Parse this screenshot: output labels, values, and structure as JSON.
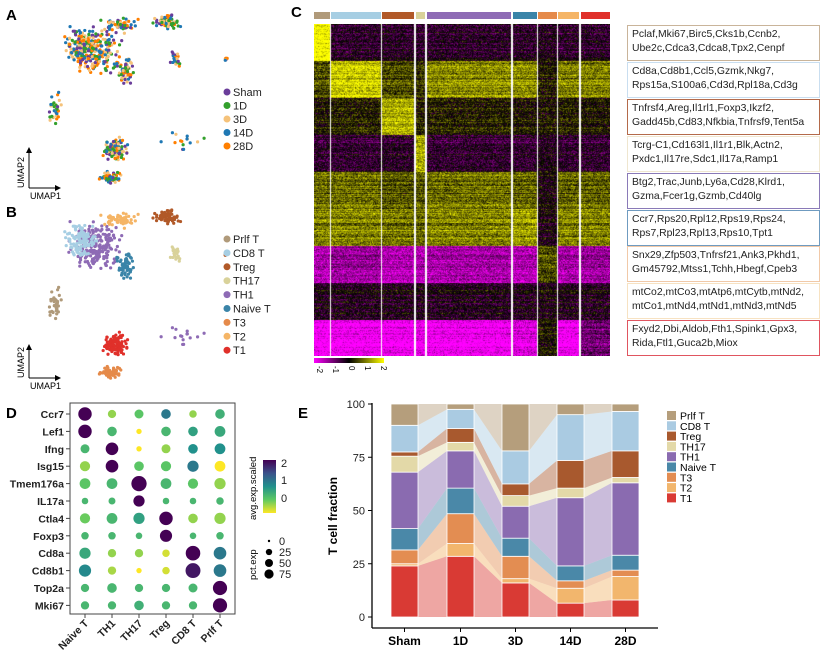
{
  "panel_labels": {
    "A": "A",
    "B": "B",
    "C": "C",
    "D": "D",
    "E": "E"
  },
  "umap": {
    "xlabel": "UMAP1",
    "ylabel": "UMAP2",
    "condition_legend": [
      {
        "label": "Sham",
        "color": "#6a3d9a"
      },
      {
        "label": "1D",
        "color": "#33a02c"
      },
      {
        "label": "3D",
        "color": "#f5c27a"
      },
      {
        "label": "14D",
        "color": "#1f78b4"
      },
      {
        "label": "28D",
        "color": "#ff7f00"
      }
    ],
    "celltype_legend": [
      {
        "label": "Prlf T",
        "color": "#b09a7a"
      },
      {
        "label": "CD8 T",
        "color": "#a6cee3"
      },
      {
        "label": "Treg",
        "color": "#b15928"
      },
      {
        "label": "TH17",
        "color": "#d9d29a"
      },
      {
        "label": "TH1",
        "color": "#8e6bb5"
      },
      {
        "label": "Naive T",
        "color": "#3a84a8"
      },
      {
        "label": "T3",
        "color": "#e58a4a"
      },
      {
        "label": "T2",
        "color": "#f5b566"
      },
      {
        "label": "T1",
        "color": "#e0302a"
      }
    ]
  },
  "heatmap": {
    "groups": [
      "Prlf T",
      "CD8 T",
      "Treg",
      "TH17",
      "TH1",
      "Naive T",
      "T3",
      "T2",
      "T1"
    ],
    "scale_ticks": [
      "-2",
      "-1",
      "0",
      "1",
      "2"
    ],
    "gene_blocks": [
      {
        "line1": "Pclaf,Mki67,Birc5,Cks1b,Ccnb2,",
        "line2": "Ube2c,Cdca3,Cdca8,Tpx2,Cenpf",
        "border": "#c9b49a"
      },
      {
        "line1": "Cd8a,Cd8b1,Ccl5,Gzmk,Nkg7,",
        "line2": "Rps15a,S100a6,Cd3d,Rpl18a,Cd3g",
        "border": "#c9def0"
      },
      {
        "line1": "Tnfrsf4,Areg,Il1rl1,Foxp3,Ikzf2,",
        "line2": "Gadd45b,Cd83,Nfkbia,Tnfrsf9,Tent5a",
        "border": "#b46a4a"
      },
      {
        "line1": "Tcrg-C1,Cd163l1,Il1r1,Blk,Actn2,",
        "line2": "Pxdc1,Il17re,Sdc1,Il17a,Ramp1",
        "border": "#efe6cf"
      },
      {
        "line1": "Btg2,Trac,Junb,Ly6a,Cd28,Klrd1,",
        "line2": "Gzma,Fcer1g,Gzmb,Cd40lg",
        "border": "#8a7ab8"
      },
      {
        "line1": "Ccr7,Rps20,Rpl12,Rps19,Rps24,",
        "line2": "Rps7,Rpl23,Rpl13,Rps10,Tpt1",
        "border": "#6f9bc0"
      },
      {
        "line1": "Snx29,Zfp503,Tnfrsf21,Ank3,Pkhd1,",
        "line2": "Gm45792,Mtss1,Tchh,Hbegf,Cpeb3",
        "border": "#f1c9a8"
      },
      {
        "line1": "mtCo2,mtCo3,mtAtp6,mtCytb,mtNd2,",
        "line2": "mtCo1,mtNd4,mtNd1,mtNd3,mtNd5",
        "border": "#f7e2c2"
      },
      {
        "line1": "Fxyd2,Dbi,Aldob,Fth1,Spink1,Gpx3,",
        "line2": "Rida,Ftl1,Guca2b,Miox",
        "border": "#e05560"
      }
    ]
  },
  "chart_data": [
    {
      "type": "scatter",
      "subtype": "dot-plot",
      "genes": [
        "Ccr7",
        "Lef1",
        "Ifng",
        "Isg15",
        "Tmem176a",
        "IL17a",
        "Ctla4",
        "Foxp3",
        "Cd8a",
        "Cd8b1",
        "Top2a",
        "Mki67"
      ],
      "cell_types": [
        "Naive T",
        "TH1",
        "TH17",
        "Treg",
        "CD8 T",
        "Prlf T"
      ],
      "avg_exp_scaled": [
        [
          2,
          -0.5,
          -0.2,
          0.8,
          -0.5,
          0.1
        ],
        [
          2,
          0,
          -1,
          0,
          0.3,
          0.2
        ],
        [
          0,
          2,
          -1,
          -0.5,
          0.5,
          0.5
        ],
        [
          -0.5,
          2,
          -0.2,
          -0.2,
          0.8,
          -1
        ],
        [
          -0.2,
          0,
          2,
          0,
          -0.2,
          -0.5
        ],
        [
          0,
          0,
          2,
          0,
          0,
          0
        ],
        [
          -0.3,
          0,
          0.3,
          2,
          -0.5,
          -0.5
        ],
        [
          0,
          0,
          0,
          2,
          0,
          0
        ],
        [
          0.2,
          -0.5,
          -0.5,
          -0.8,
          2,
          0.8
        ],
        [
          0.6,
          -0.6,
          -1,
          -0.8,
          1.8,
          0.8
        ],
        [
          0,
          0,
          0,
          0,
          0,
          2
        ],
        [
          0,
          0,
          0.1,
          0,
          0,
          2
        ]
      ],
      "pct_exp": [
        [
          70,
          20,
          25,
          30,
          15,
          30
        ],
        [
          70,
          30,
          5,
          30,
          30,
          40
        ],
        [
          25,
          60,
          5,
          25,
          30,
          40
        ],
        [
          35,
          60,
          30,
          35,
          45,
          40
        ],
        [
          40,
          40,
          95,
          40,
          35,
          45
        ],
        [
          10,
          12,
          45,
          10,
          10,
          15
        ],
        [
          35,
          40,
          45,
          70,
          30,
          45
        ],
        [
          15,
          15,
          10,
          55,
          10,
          15
        ],
        [
          45,
          20,
          20,
          15,
          85,
          60
        ],
        [
          55,
          20,
          5,
          15,
          90,
          60
        ],
        [
          20,
          30,
          20,
          20,
          25,
          80
        ],
        [
          20,
          20,
          30,
          20,
          20,
          80
        ]
      ],
      "color_legend": {
        "title": "avg.exp.scaled",
        "ticks": [
          "2",
          "1",
          "0"
        ],
        "range": [
          -1,
          2
        ],
        "colormap": "viridis-reversed"
      },
      "size_legend": {
        "title": "pct.exp",
        "ticks": [
          "0",
          "25",
          "50",
          "75"
        ]
      }
    },
    {
      "type": "bar",
      "subtype": "stacked-alluvial",
      "categories": [
        "Sham",
        "1D",
        "3D",
        "14D",
        "28D"
      ],
      "ylabel": "T cell fraction",
      "xlabel": "",
      "ylim": [
        0,
        100
      ],
      "yticks": [
        "0",
        "25",
        "50",
        "75",
        "100"
      ],
      "legend_position": "right",
      "series": [
        {
          "name": "T1",
          "color": "#d93a34",
          "values": [
            24,
            28.5,
            16,
            6.5,
            8
          ]
        },
        {
          "name": "T2",
          "color": "#f2b66d",
          "values": [
            1,
            6,
            2,
            7,
            11
          ]
        },
        {
          "name": "T3",
          "color": "#e38d52",
          "values": [
            6.5,
            14,
            10.5,
            3.5,
            3
          ]
        },
        {
          "name": "Naive T",
          "color": "#4a88a8",
          "values": [
            10,
            12,
            8.5,
            7,
            7
          ]
        },
        {
          "name": "TH1",
          "color": "#8a6bb0",
          "values": [
            26.5,
            17.5,
            15,
            32,
            34
          ]
        },
        {
          "name": "TH17",
          "color": "#e3d9a8",
          "values": [
            7.5,
            4,
            5,
            4.5,
            2.5
          ]
        },
        {
          "name": "Treg",
          "color": "#a8592e",
          "values": [
            2,
            6.5,
            5.5,
            13,
            12.5
          ]
        },
        {
          "name": "CD8 T",
          "color": "#aacbe2",
          "values": [
            12.5,
            9,
            15.5,
            21.5,
            18.5
          ]
        },
        {
          "name": "Prlf T",
          "color": "#b59e7c",
          "values": [
            10,
            2.5,
            22,
            5,
            3.5
          ]
        }
      ]
    }
  ]
}
